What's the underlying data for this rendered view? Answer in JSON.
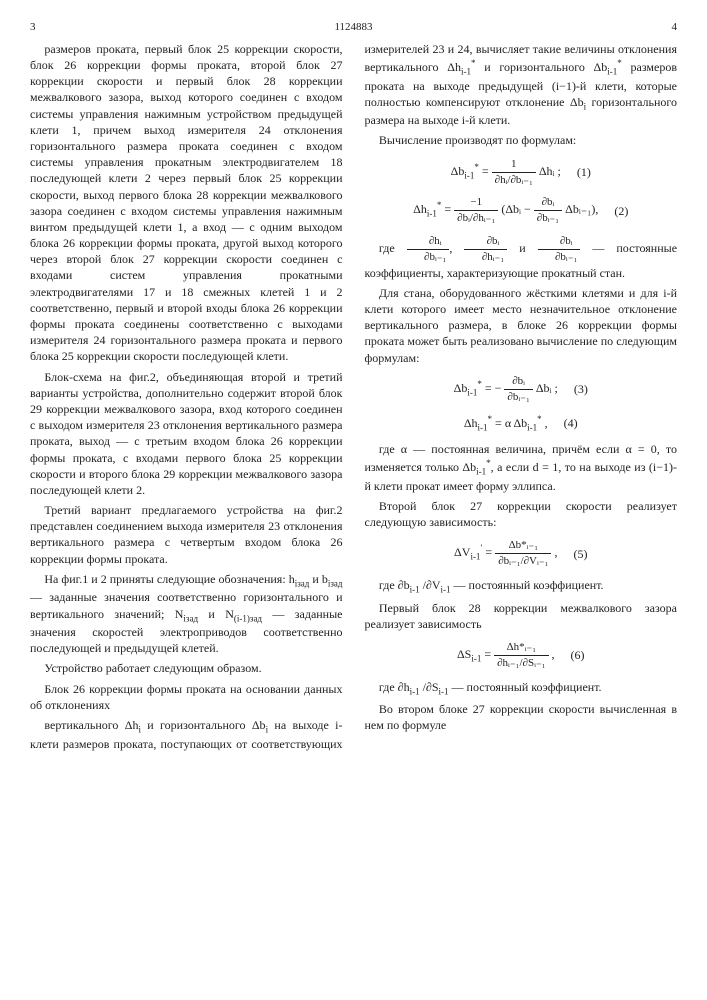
{
  "page": {
    "left_num": "3",
    "doc_number": "1124883",
    "right_num": "4"
  },
  "col1": {
    "p1": "размеров проката, первый блок 25 коррекции скорости, блок 26 коррекции формы проката, второй блок 27 коррекции скорости и первый блок 28 коррекции межвалкового зазора, выход которого соединен с входом системы управления нажимным устройством предыдущей клети 1, причем выход измерителя 24 отклонения горизонтального размера проката соединен с входом системы управления прокатным электродвигателем 18 последующей клети 2 через первый блок 25 коррекции скорости, выход первого блока 28 коррекции межвалкового зазора соединен с входом системы управления нажимным винтом предыдущей клети 1, а вход — с одним выходом блока 26 коррекции формы проката, другой выход которого через второй блок 27 коррекции скорости соединен с входами систем управления прокатными электродвигателями 17 и 18 смежных клетей 1 и 2 соответственно, первый и второй входы блока 26 коррекции формы проката соединены соответственно с выходами измерителя 24 горизонтального размера проката и первого блока 25 коррекции скорости последующей клети.",
    "p2": "Блок-схема на фиг.2, объединяющая второй и третий варианты устройства, дополнительно содержит второй блок 29 коррекции межвалкового зазора, вход которого соединен с выходом измерителя 23 отклонения вертикального размера проката, выход — с третьим входом блока 26 коррекции формы проката, с входами первого блока 25 коррекции скорости и второго блока 29 коррекции межвалкового зазора последующей клети 2.",
    "p3": "Третий вариант предлагаемого устройства на фиг.2 представлен соединением выхода измерителя 23 отклонения вертикального размера с четвертым входом блока 26 коррекции формы проката.",
    "p4_lead": "На фиг.1 и 2 приняты следующие обозначения: ",
    "p4_sym1": "h",
    "p4_sub1": "iзад",
    "p4_mid1": " и ",
    "p4_sym2": "b",
    "p4_sub2": "iзад",
    "p4_tail1": " — заданные значения соответственно горизонтального и вертикального значений; ",
    "p4_sym3": "N",
    "p4_sub3": "iзад",
    "p4_mid2": " и ",
    "p4_sym4": "N",
    "p4_sub4": "(i-1)зад",
    "p4_tail2": " — заданные значения скоростей электроприводов соответственно последующей и предыдущей клетей.",
    "p5": "Устройство работает следующим образом.",
    "p6": "Блок 26 коррекции формы проката на основании данных об отклонениях"
  },
  "col2": {
    "p1_lead": "вертикального Δh",
    "p1_sub1": "i",
    "p1_mid1": " и горизонтального Δb",
    "p1_sub2": "i",
    "p1_mid2": " на выходе i-клети размеров проката, поступающих от соответствующих измерителей 23 и 24, вычисляет такие величины отклонения вертикального Δh",
    "p1_sub3": "i-1",
    "p1_sup3": "*",
    "p1_mid3": " и горизонтального Δb",
    "p1_sub4": "i-1",
    "p1_sup4": "*",
    "p1_mid4": " размеров проката на выходе предыдущей (i−1)-й клети, которые полностью компенсируют отклонение Δb",
    "p1_sub5": "i",
    "p1_tail": " горизонтального размера на выходе i-й клети.",
    "p2": "Вычисление производят по формулам:",
    "f1_lhs": "Δb",
    "f1_lhs_sub": "i-1",
    "f1_lhs_sup": "*",
    "f1_eq": " = ",
    "f1_frac_num": "1",
    "f1_frac_den": "∂hᵢ/∂bᵢ₋₁",
    "f1_rhs": " Δhᵢ ;",
    "f1_num": "(1)",
    "f2_lhs": "Δh",
    "f2_lhs_sub": "i-1",
    "f2_lhs_sup": "*",
    "f2_eq": " = ",
    "f2_frac_num": "−1",
    "f2_frac_den": "∂bᵢ/∂hᵢ₋₁",
    "f2_paren_l": "(",
    "f2_inner1": "Δbᵢ − ",
    "f2_frac2_num": "∂bᵢ",
    "f2_frac2_den": "∂bᵢ₋₁",
    "f2_inner2": " Δbᵢ₋₁",
    "f2_paren_r": "),",
    "f2_num": "(2)",
    "p3_lead": "где ",
    "p3_frac1_num": "∂hᵢ",
    "p3_frac1_den": "∂bᵢ₋₁",
    "p3_sep1": ", ",
    "p3_frac2_num": "∂bᵢ",
    "p3_frac2_den": "∂hᵢ₋₁",
    "p3_sep2": " и ",
    "p3_frac3_num": "∂bᵢ",
    "p3_frac3_den": "∂bᵢ₋₁",
    "p3_tail": " — постоянные коэффициенты, характеризующие прокатный стан.",
    "p4": "Для стана, оборудованного жёсткими клетями и для i-й клети которого имеет место незначительное отклонение вертикального размера, в блоке 26 коррекции формы проката может быть реализовано вычисление по следующим формулам:",
    "f3_lhs": "Δb",
    "f3_lhs_sub": "i-1",
    "f3_lhs_sup": "*",
    "f3_eq": " = − ",
    "f3_frac_num": "∂bᵢ",
    "f3_frac_den": "∂bᵢ₋₁",
    "f3_inner": " Δbᵢ ;",
    "f3_num": "(3)",
    "f4_lhs": "Δh",
    "f4_lhs_sub": "i-1",
    "f4_lhs_sup": "*",
    "f4_eq": " = α",
    "f4_rhs": " Δb",
    "f4_rhs_sub": "i-1",
    "f4_rhs_sup": "*",
    "f4_tail": " ,",
    "f4_num": "(4)",
    "p5_lead": "где α — постоянная величина, причём если α = 0, то изменяется только Δb",
    "p5_sub1": "i-1",
    "p5_sup1": "*",
    "p5_mid": ", а если d = 1, то на выходе из (i−1)-й клети прокат имеет форму эллипса.",
    "p6": "Второй блок 27 коррекции скорости реализует следующую зависимость:",
    "f5_lhs": "ΔV",
    "f5_lhs_sub": "i-1",
    "f5_lhs_sup": "′",
    "f5_eq": " = ",
    "f5_frac_num": "Δb*ᵢ₋₁",
    "f5_frac_den": "∂bᵢ₋₁/∂Vᵢ₋₁",
    "f5_tail": " ,",
    "f5_num": "(5)",
    "p7_lead": "где ∂b",
    "p7_sub1": "i-1",
    "p7_mid1": " /∂V",
    "p7_sub2": "i-1",
    "p7_tail": " — постоянный коэффициент.",
    "p8": "Первый блок 28 коррекции межвалкового зазора реализует зависимость",
    "f6_lhs": "ΔS",
    "f6_lhs_sub": "i-1",
    "f6_eq": " = ",
    "f6_frac_num": "Δh*ᵢ₋₁",
    "f6_frac_den": "∂hᵢ₋₁/∂Sᵢ₋₁",
    "f6_tail": " ,",
    "f6_num": "(6)",
    "p9_lead": "где ∂h",
    "p9_sub1": "i-1",
    "p9_mid1": " /∂S",
    "p9_sub2": "i-1",
    "p9_tail": " — постоянный коэффициент.",
    "p10": "Во втором блоке 27 коррекции скорости вычисленная в нем по формуле"
  },
  "markers": [
    "5",
    "10",
    "15",
    "20",
    "25",
    "30",
    "35",
    "40",
    "45",
    "50",
    "55"
  ]
}
